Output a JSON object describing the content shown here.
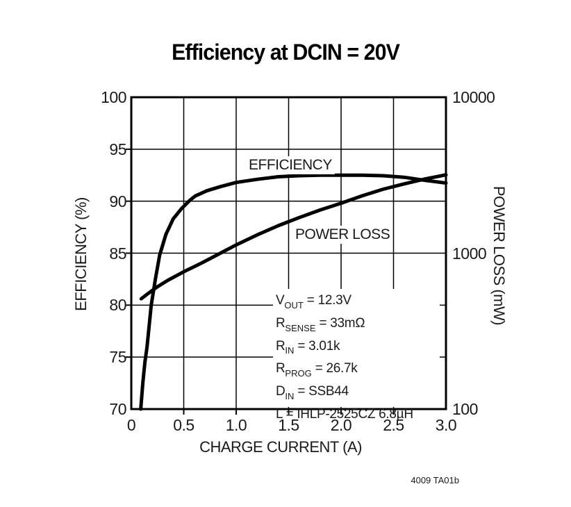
{
  "title": "Efficiency at DCIN = 20V",
  "watermark": "4009 TA01b",
  "colors": {
    "line": "#000000",
    "grid": "#000000",
    "background": "#ffffff",
    "text": "#1a1a1a"
  },
  "chart_data": {
    "type": "line",
    "title": "Efficiency at DCIN = 20V",
    "grid": true,
    "x_axis": {
      "label": "CHARGE CURRENT (A)",
      "min": 0,
      "max": 3,
      "ticks": [
        "0",
        "0.5",
        "1.0",
        "1.5",
        "2.0",
        "2.5",
        "3.0"
      ],
      "tick_values": [
        0,
        0.5,
        1.0,
        1.5,
        2.0,
        2.5,
        3.0
      ]
    },
    "y_left": {
      "label": "EFFICIENCY (%)",
      "min": 70,
      "max": 100,
      "ticks": [
        100,
        95,
        90,
        85,
        80,
        75,
        70
      ]
    },
    "y_right": {
      "label": "POWER LOSS (mW)",
      "scale": "log",
      "min": 100,
      "max": 10000,
      "ticks": [
        10000,
        1000,
        100
      ]
    },
    "series": [
      {
        "name": "EFFICIENCY",
        "axis": "left",
        "units": "%",
        "points": [
          [
            0.09,
            70
          ],
          [
            0.11,
            72.5
          ],
          [
            0.13,
            74.5
          ],
          [
            0.15,
            76
          ],
          [
            0.17,
            78
          ],
          [
            0.19,
            80
          ],
          [
            0.23,
            82.5
          ],
          [
            0.27,
            84.8
          ],
          [
            0.33,
            86.8
          ],
          [
            0.4,
            88.3
          ],
          [
            0.48,
            89.3
          ],
          [
            0.56,
            90.1
          ],
          [
            0.61,
            90.5
          ],
          [
            0.72,
            91.0
          ],
          [
            0.85,
            91.4
          ],
          [
            1.0,
            91.8
          ],
          [
            1.2,
            92.1
          ],
          [
            1.4,
            92.35
          ],
          [
            1.6,
            92.45
          ],
          [
            1.8,
            92.5
          ],
          [
            2.0,
            92.5
          ],
          [
            2.2,
            92.5
          ],
          [
            2.4,
            92.45
          ],
          [
            2.6,
            92.3
          ],
          [
            2.8,
            92.0
          ],
          [
            3.0,
            91.75
          ]
        ]
      },
      {
        "name": "POWER LOSS",
        "axis": "right",
        "units": "mW",
        "points": [
          [
            0.095,
            510
          ],
          [
            0.15,
            545
          ],
          [
            0.25,
            610
          ],
          [
            0.35,
            670
          ],
          [
            0.5,
            760
          ],
          [
            0.65,
            850
          ],
          [
            0.8,
            960
          ],
          [
            1.0,
            1130
          ],
          [
            1.2,
            1310
          ],
          [
            1.4,
            1500
          ],
          [
            1.6,
            1690
          ],
          [
            1.8,
            1890
          ],
          [
            2.0,
            2090
          ],
          [
            2.2,
            2330
          ],
          [
            2.4,
            2570
          ],
          [
            2.6,
            2780
          ],
          [
            2.8,
            2990
          ],
          [
            3.0,
            3180
          ]
        ]
      }
    ],
    "annotations": [
      {
        "pre": "V",
        "sub": "OUT",
        "post": " = 12.3V"
      },
      {
        "pre": "R",
        "sub": "SENSE",
        "post": " = 33mΩ"
      },
      {
        "pre": "R",
        "sub": "IN",
        "post": " = 3.01k"
      },
      {
        "pre": "R",
        "sub": "PROG",
        "post": " = 26.7k"
      },
      {
        "pre": "D",
        "sub": "IN",
        "post": " = SSB44"
      },
      {
        "pre": "L",
        "sub": "",
        "post": " = IHLP-2525CZ 6.8µH"
      }
    ]
  }
}
